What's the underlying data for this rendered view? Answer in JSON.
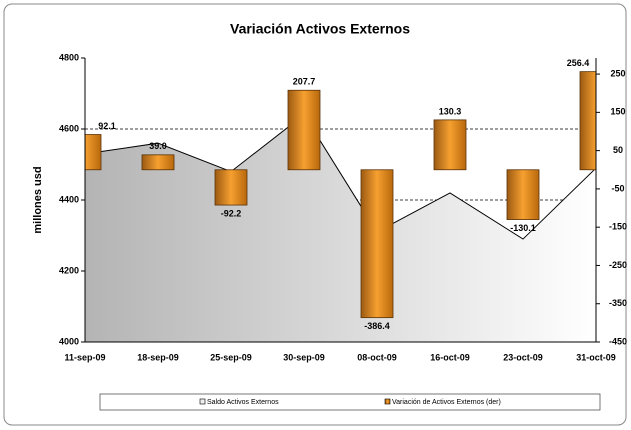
{
  "chart_data": {
    "type": "area-bar-combo",
    "title": "Variación Activos Externos",
    "y_label": "millones usd",
    "categories": [
      "11-sep-09",
      "18-sep-09",
      "25-sep-09",
      "30-sep-09",
      "08-oct-09",
      "16-oct-09",
      "23-oct-09",
      "31-oct-09"
    ],
    "series": [
      {
        "name": "Saldo Activos Externos",
        "type": "area",
        "color": "#c8c8c8",
        "values": [
          4530,
          4560,
          4480,
          4640,
          4310,
          4420,
          4290,
          4490
        ]
      },
      {
        "name": "Variación de Activos Externos (der)",
        "type": "bar",
        "axis": "y2",
        "color": "#e8901e",
        "values": [
          92.1,
          39.0,
          -92.2,
          207.7,
          -386.4,
          130.3,
          -130.1,
          256.4
        ],
        "value_labels": [
          "92.1",
          "39.0",
          "-92.2",
          "207.7",
          "-386.4",
          "130.3",
          "-130.1",
          "256.4"
        ]
      }
    ],
    "ylim": [
      4000,
      4800
    ],
    "yticks": [
      4000,
      4200,
      4400,
      4600,
      4800
    ],
    "y2lim": [
      -450,
      292
    ],
    "y2ticks": [
      -450,
      -350,
      -250,
      -150,
      -50,
      50,
      150,
      250
    ],
    "grid": true
  }
}
